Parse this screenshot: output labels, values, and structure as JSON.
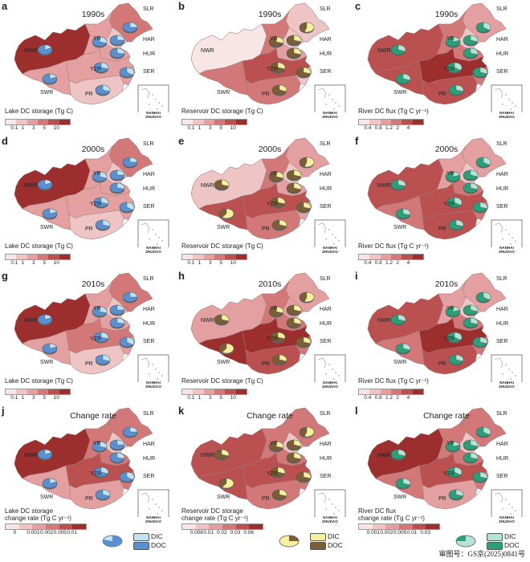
{
  "panels": [
    {
      "letter": "a",
      "period": "1990s",
      "layer": "lake",
      "legend_title": "Lake DC storage (Tg C)",
      "ticks": [
        "0.1",
        "1",
        "3",
        "5",
        "10"
      ],
      "levels": {
        "NWR": 5,
        "SLR": 3,
        "YR": 2,
        "HAR": 1,
        "HUR": 2,
        "SER": 2,
        "YZR": 2,
        "SWR": 2,
        "PR": 1
      },
      "pies": {
        "NWR": 0.18,
        "YR": 0.3,
        "HAR": 0.25,
        "HUR": 0.28,
        "YZR": 0.3,
        "SER": 0.35,
        "SWR": 0.2,
        "PR": 0.3,
        "SLR": 0.25
      }
    },
    {
      "letter": "b",
      "period": "1990s",
      "layer": "reservoir",
      "legend_title": "Reservoir DC storage (Tg C)",
      "ticks": [
        "0.1",
        "1",
        "3",
        "5",
        "10"
      ],
      "levels": {
        "NWR": 0,
        "SLR": 1,
        "YR": 3,
        "HAR": 1,
        "HUR": 2,
        "SER": 1,
        "YZR": 4,
        "SWR": 3,
        "PR": 3
      },
      "pies": {
        "SLR": 0.55,
        "YR": 0.3,
        "HAR": 0.3,
        "HUR": 0.3,
        "YZR": 0.3,
        "SER": 0.3,
        "PR": 0.3
      }
    },
    {
      "letter": "c",
      "period": "1990s",
      "layer": "river",
      "legend_title": "River DC flux (Tg C yr⁻¹)",
      "ticks": [
        "0.4",
        "0.8",
        "1.2",
        "2",
        "4"
      ],
      "levels": {
        "NWR": 4,
        "SLR": 2,
        "YR": 3,
        "HAR": 1,
        "HUR": 3,
        "SER": 3,
        "YZR": 5,
        "SWR": 4,
        "PR": 4
      },
      "pies": {
        "NWR": 0.3,
        "YR": 0.2,
        "HAR": 0.3,
        "HUR": 0.3,
        "YZR": 0.35,
        "SER": 0.3,
        "SWR": 0.3,
        "PR": 0.3,
        "SLR": 0.35
      }
    },
    {
      "letter": "d",
      "period": "2000s",
      "layer": "lake",
      "legend_title": "Lake DC storage (Tg C)",
      "ticks": [
        "0.1",
        "1",
        "3",
        "5",
        "10"
      ],
      "levels": {
        "NWR": 5,
        "SLR": 3,
        "YR": 2,
        "HAR": 1,
        "HUR": 2,
        "SER": 2,
        "YZR": 2,
        "SWR": 2,
        "PR": 1
      },
      "pies": {
        "NWR": 0.18,
        "YR": 0.3,
        "HAR": 0.25,
        "HUR": 0.28,
        "YZR": 0.3,
        "SER": 0.35,
        "SWR": 0.2,
        "PR": 0.3,
        "SLR": 0.25
      }
    },
    {
      "letter": "e",
      "period": "2000s",
      "layer": "reservoir",
      "legend_title": "Reservoir DC storage (Tg C)",
      "ticks": [
        "0.1",
        "1",
        "3",
        "5",
        "10"
      ],
      "levels": {
        "NWR": 1,
        "SLR": 2,
        "YR": 3,
        "HAR": 1,
        "HUR": 2,
        "SER": 2,
        "YZR": 4,
        "SWR": 4,
        "PR": 3
      },
      "pies": {
        "NWR": 0.3,
        "SLR": 0.55,
        "YR": 0.3,
        "HAR": 0.3,
        "HUR": 0.3,
        "YZR": 0.3,
        "SER": 0.3,
        "SWR": 0.6,
        "PR": 0.3
      }
    },
    {
      "letter": "f",
      "period": "2000s",
      "layer": "river",
      "legend_title": "River DC flux (Tg C yr⁻¹)",
      "ticks": [
        "0.4",
        "0.8",
        "1.2",
        "2",
        "4"
      ],
      "levels": {
        "NWR": 4,
        "SLR": 2,
        "YR": 2,
        "HAR": 1,
        "HUR": 3,
        "SER": 3,
        "YZR": 4,
        "SWR": 3,
        "PR": 4
      },
      "pies": {
        "NWR": 0.3,
        "YR": 0.2,
        "HAR": 0.3,
        "HUR": 0.3,
        "YZR": 0.35,
        "SER": 0.3,
        "SWR": 0.3,
        "PR": 0.3,
        "SLR": 0.35
      }
    },
    {
      "letter": "g",
      "period": "2010s",
      "layer": "lake",
      "legend_title": "Lake DC storage (Tg C)",
      "ticks": [
        "0.1",
        "1",
        "3",
        "5",
        "10"
      ],
      "levels": {
        "NWR": 5,
        "SLR": 3,
        "YR": 2,
        "HAR": 1,
        "HUR": 2,
        "SER": 2,
        "YZR": 3,
        "SWR": 2,
        "PR": 1
      },
      "pies": {
        "NWR": 0.18,
        "YR": 0.3,
        "HAR": 0.25,
        "HUR": 0.28,
        "YZR": 0.3,
        "SER": 0.35,
        "SWR": 0.2,
        "PR": 0.3,
        "SLR": 0.25
      }
    },
    {
      "letter": "h",
      "period": "2010s",
      "layer": "reservoir",
      "legend_title": "Reservoir DC storage (Tg C)",
      "ticks": [
        "0.1",
        "1",
        "3",
        "5",
        "10"
      ],
      "levels": {
        "NWR": 2,
        "SLR": 2,
        "YR": 3,
        "HAR": 2,
        "HUR": 3,
        "SER": 3,
        "YZR": 5,
        "SWR": 5,
        "PR": 4
      },
      "pies": {
        "NWR": 0.3,
        "SLR": 0.55,
        "YR": 0.3,
        "HAR": 0.3,
        "HUR": 0.3,
        "YZR": 0.3,
        "SER": 0.3,
        "SWR": 0.6,
        "PR": 0.3
      }
    },
    {
      "letter": "i",
      "period": "2010s",
      "layer": "river",
      "legend_title": "River DC flux (Tg C yr⁻¹)",
      "ticks": [
        "0.4",
        "0.8",
        "1.2",
        "2",
        "4"
      ],
      "levels": {
        "NWR": 4,
        "SLR": 2,
        "YR": 2,
        "HAR": 1,
        "HUR": 3,
        "SER": 3,
        "YZR": 5,
        "SWR": 3,
        "PR": 4
      },
      "pies": {
        "NWR": 0.3,
        "YR": 0.2,
        "HAR": 0.3,
        "HUR": 0.3,
        "YZR": 0.35,
        "SER": 0.3,
        "SWR": 0.3,
        "PR": 0.3,
        "SLR": 0.35
      }
    },
    {
      "letter": "j",
      "period": "Change rate",
      "layer": "lake",
      "legend_title": "Lake DC storage\nchange rate (Tg C yr⁻¹)",
      "ticks": [
        "0",
        "0.001",
        "0.002",
        "0.005",
        "0.01"
      ],
      "levels": {
        "NWR": 5,
        "SLR": 3,
        "YR": 3,
        "HAR": 1,
        "HUR": 3,
        "SER": 3,
        "YZR": 4,
        "SWR": 2,
        "PR": 2
      },
      "pies": {
        "NWR": 0.18,
        "YR": 0.3,
        "HAR": 0.25,
        "HUR": 0.28,
        "YZR": 0.3,
        "SER": 0.35,
        "SWR": 0.2,
        "PR": 0.3,
        "SLR": 0.25
      }
    },
    {
      "letter": "k",
      "period": "Change rate",
      "layer": "reservoir",
      "legend_title": "Reservoir DC storage\nchange rate (Tg C yr⁻¹)",
      "ticks": [
        "0.008",
        "0.01",
        "0.02",
        "0.03",
        "0.06"
      ],
      "levels": {
        "NWR": 4,
        "SLR": 3,
        "YR": 3,
        "HAR": 1,
        "HUR": 3,
        "SER": 3,
        "YZR": 4,
        "SWR": 4,
        "PR": 3
      },
      "pies": {
        "NWR": 0.3,
        "SLR": 0.55,
        "YR": 0.3,
        "HAR": 0.3,
        "HUR": 0.3,
        "YZR": 0.3,
        "SER": 0.3,
        "SWR": 0.6,
        "PR": 0.3
      }
    },
    {
      "letter": "l",
      "period": "Change rate",
      "layer": "river",
      "legend_title": "River DC flux\nchange rate (Tg C yr⁻¹)",
      "ticks": [
        "0.001",
        "0.002",
        "0.005",
        "0.01",
        "0.03"
      ],
      "levels": {
        "NWR": 5,
        "SLR": 3,
        "YR": 3,
        "HAR": 1,
        "HUR": 3,
        "SER": 3,
        "YZR": 4,
        "SWR": 3,
        "PR": 2
      },
      "pies": {
        "NWR": 0.3,
        "YR": 0.2,
        "HAR": 0.3,
        "HUR": 0.3,
        "YZR": 0.35,
        "SER": 0.3,
        "SWR": 0.3,
        "PR": 0.3,
        "SLR": 0.35
      }
    }
  ],
  "region_labels": [
    "NWR",
    "SLR",
    "YR",
    "HAR",
    "HUR",
    "SER",
    "YZR",
    "SWR",
    "PR"
  ],
  "inset_label": [
    "NANHAI",
    "ZHUDAO"
  ],
  "colors": {
    "ramp": [
      "#f8e6e6",
      "#efc4c4",
      "#e4a0a0",
      "#d27878",
      "#bb5050",
      "#9c2e2e"
    ],
    "border": "#9a8080",
    "lake": {
      "dic": "#bfe3f3",
      "doc": "#5a8fd0"
    },
    "reservoir": {
      "dic": "#f6ef9e",
      "doc": "#7b5d37"
    },
    "river": {
      "dic": "#b7e3d7",
      "doc": "#2aa078"
    }
  },
  "pie_legends": [
    {
      "dic_label": "DIC",
      "doc_label": "DOC"
    },
    {
      "dic_label": "DIC",
      "doc_label": "DOC"
    },
    {
      "dic_label": "DIC",
      "doc_label": "DOC"
    }
  ],
  "approval_number": "审图号：GS京(2025)0841号"
}
